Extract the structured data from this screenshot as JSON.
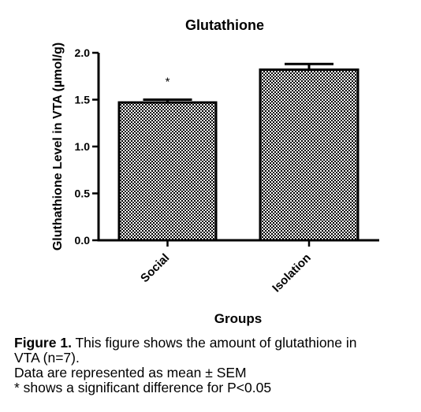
{
  "chart_data": {
    "type": "bar",
    "title": "Glutathione",
    "xlabel": "Groups",
    "ylabel": "Gluthathione Level in VTA (µmol/g)",
    "categories": [
      "Social",
      "Isolation"
    ],
    "values": [
      1.47,
      1.82
    ],
    "errors": [
      0.03,
      0.06
    ],
    "significance": [
      "*",
      ""
    ],
    "ylim": [
      0.0,
      2.0
    ],
    "yticks": [
      "0.0",
      "0.5",
      "1.0",
      "1.5",
      "2.0"
    ],
    "ytick_values": [
      0.0,
      0.5,
      1.0,
      1.5,
      2.0
    ],
    "grid": false,
    "bar_pattern": "checkered",
    "colors": {
      "bar_fill": "#ffffff",
      "bar_pattern": "#000000",
      "axis": "#000000"
    }
  },
  "caption": {
    "lead": "Figure 1.",
    "text_1": " This figure shows the amount of glutathione in",
    "text_2": "VTA (n=7).",
    "text_3": "Data are represented as mean ± SEM",
    "text_4": "* shows a significant difference for P<0.05"
  }
}
